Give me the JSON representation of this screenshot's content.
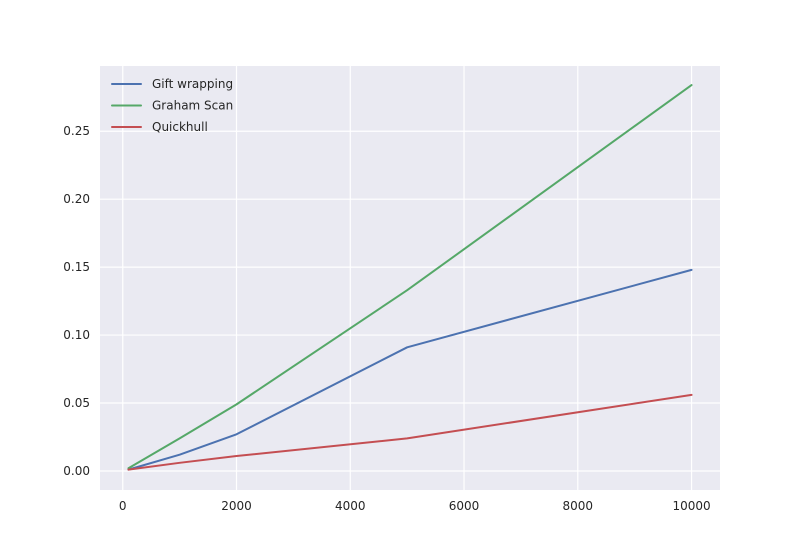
{
  "chart_data": {
    "type": "line",
    "title": "",
    "xlabel": "",
    "ylabel": "",
    "x": [
      100,
      1000,
      2000,
      5000,
      10000
    ],
    "series": [
      {
        "name": "Gift wrapping",
        "color": "#4c72b0",
        "values": [
          0.001,
          0.012,
          0.027,
          0.091,
          0.148
        ]
      },
      {
        "name": "Graham Scan",
        "color": "#55a868",
        "values": [
          0.002,
          0.024,
          0.049,
          0.133,
          0.284
        ]
      },
      {
        "name": "Quickhull",
        "color": "#c44e52",
        "values": [
          0.001,
          0.006,
          0.011,
          0.024,
          0.056
        ]
      }
    ],
    "xlim": [
      -400,
      10500
    ],
    "ylim": [
      -0.014,
      0.298
    ],
    "xticks": [
      0,
      2000,
      4000,
      6000,
      8000,
      10000
    ],
    "xtick_labels": [
      "0",
      "2000",
      "4000",
      "6000",
      "8000",
      "10000"
    ],
    "yticks": [
      0.0,
      0.05,
      0.1,
      0.15,
      0.2,
      0.25
    ],
    "ytick_labels": [
      "0.00",
      "0.05",
      "0.10",
      "0.15",
      "0.20",
      "0.25"
    ],
    "grid": true,
    "legend_position": "top-left",
    "background_color": "#eaeaf2"
  }
}
